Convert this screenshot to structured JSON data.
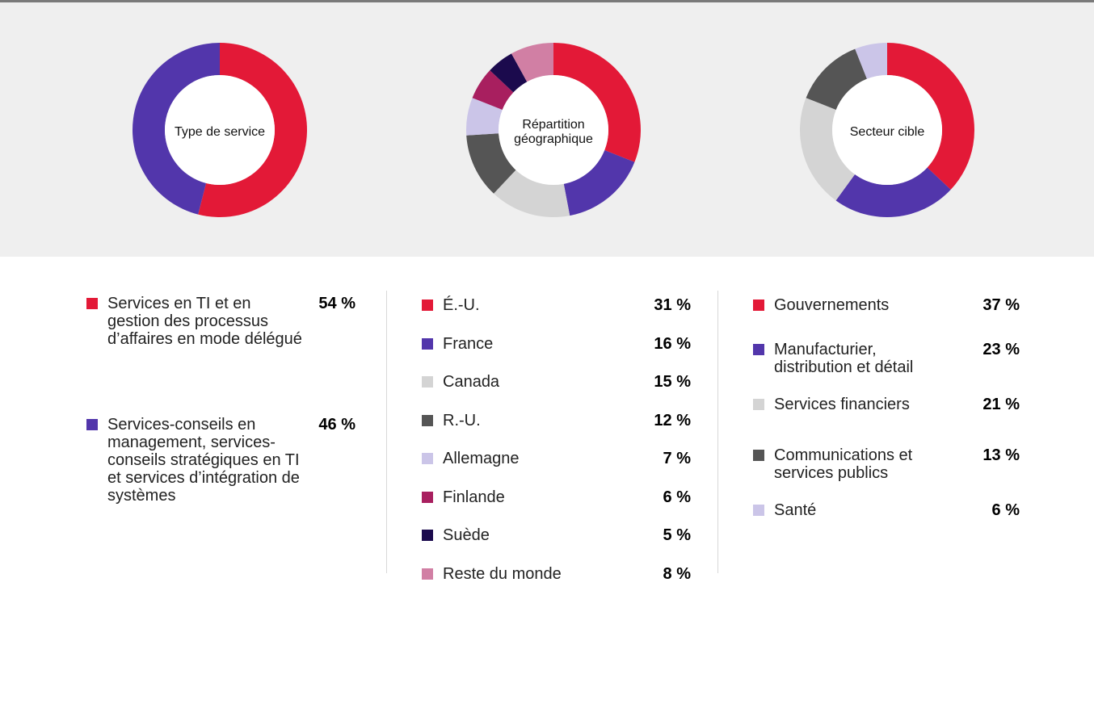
{
  "chart_data": [
    {
      "type": "pie",
      "title": "Type de service",
      "categories": [
        "Services en TI et en gestion des processus d’affaires en mode délégué",
        "Services-conseils en management, services-conseils stratégiques en TI et services d’intégration de systèmes"
      ],
      "values": [
        54,
        46
      ],
      "value_labels": [
        "54 %",
        "46 %"
      ],
      "colors": [
        "#e31937",
        "#5236ab"
      ]
    },
    {
      "type": "pie",
      "title": "Répartition géographique",
      "categories": [
        "É.-U.",
        "France",
        "Canada",
        "R.-U.",
        "Allemagne",
        "Finlande",
        "Suède",
        "Reste du monde"
      ],
      "values": [
        31,
        16,
        15,
        12,
        7,
        6,
        5,
        8
      ],
      "value_labels": [
        "31 %",
        "16 %",
        "15 %",
        "12 %",
        "7 %",
        "6 %",
        "5 %",
        "8 %"
      ],
      "colors": [
        "#e31937",
        "#5236ab",
        "#d4d4d4",
        "#555555",
        "#cbc5e8",
        "#a81f5f",
        "#1b0a4d",
        "#d17fa4"
      ]
    },
    {
      "type": "pie",
      "title": "Secteur cible",
      "categories": [
        "Gouvernements",
        "Manufacturier, distribution et détail",
        "Services financiers",
        "Communications et services publics",
        "Santé"
      ],
      "values": [
        37,
        23,
        21,
        13,
        6
      ],
      "value_labels": [
        "37 %",
        "23 %",
        "21 %",
        "13 %",
        "6 %"
      ],
      "colors": [
        "#e31937",
        "#5236ab",
        "#d4d4d4",
        "#555555",
        "#cbc5e8"
      ]
    }
  ]
}
